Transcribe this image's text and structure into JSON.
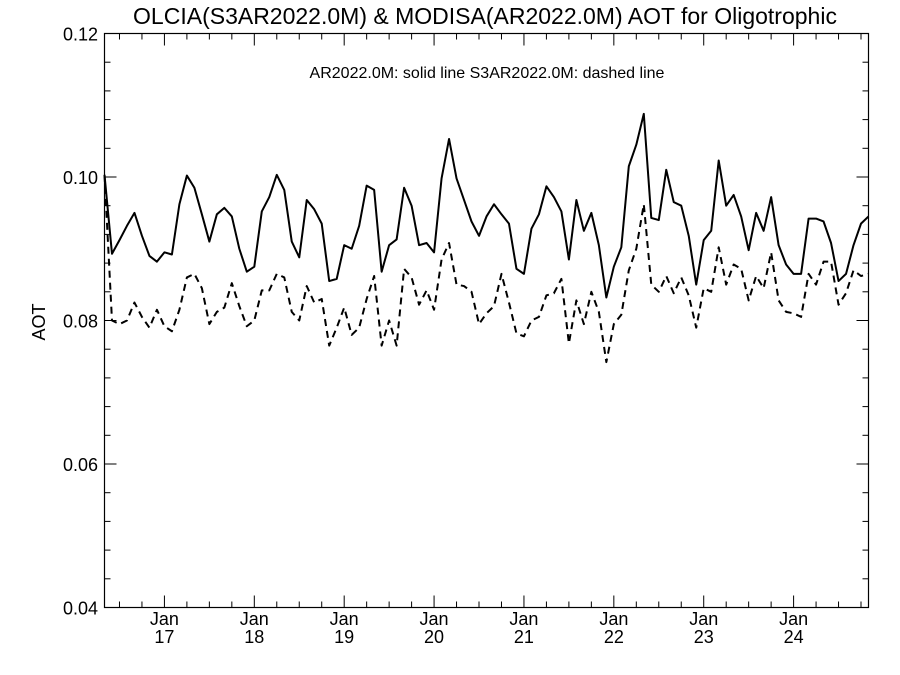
{
  "chart_data": {
    "type": "line",
    "title": "OLCIA(S3AR2022.0M) & MODISA(AR2022.0M)  AOT for Oligotrophic",
    "annotation": "AR2022.0M: solid line   S3AR2022.0M: dashed line",
    "ylabel": "AOT",
    "xlabel": "",
    "ylim": [
      0.04,
      0.12
    ],
    "xlim": [
      "2016-05",
      "2024-11"
    ],
    "y_ticks": [
      {
        "value": 0.04,
        "label": "0.04"
      },
      {
        "value": 0.06,
        "label": "0.06"
      },
      {
        "value": 0.08,
        "label": "0.08"
      },
      {
        "value": 0.1,
        "label": "0.10"
      },
      {
        "value": 0.12,
        "label": "0.12"
      }
    ],
    "x_ticks": [
      {
        "value": "2017-01",
        "label1": "Jan",
        "label2": "17"
      },
      {
        "value": "2018-01",
        "label1": "Jan",
        "label2": "18"
      },
      {
        "value": "2019-01",
        "label1": "Jan",
        "label2": "19"
      },
      {
        "value": "2020-01",
        "label1": "Jan",
        "label2": "20"
      },
      {
        "value": "2021-01",
        "label1": "Jan",
        "label2": "21"
      },
      {
        "value": "2022-01",
        "label1": "Jan",
        "label2": "22"
      },
      {
        "value": "2023-01",
        "label1": "Jan",
        "label2": "23"
      },
      {
        "value": "2024-01",
        "label1": "Jan",
        "label2": "24"
      }
    ],
    "minor_tick_months": [
      "04",
      "07",
      "10"
    ],
    "grid": false,
    "series": [
      {
        "name": "AR2022.0M",
        "style": "solid",
        "color": "#000000",
        "points": [
          [
            "2016-05",
            0.1003
          ],
          [
            "2016-06",
            0.0893
          ],
          [
            "2016-07",
            0.0912
          ],
          [
            "2016-08",
            0.0932
          ],
          [
            "2016-09",
            0.095
          ],
          [
            "2016-10",
            0.0918
          ],
          [
            "2016-11",
            0.089
          ],
          [
            "2016-12",
            0.0882
          ],
          [
            "2017-01",
            0.0895
          ],
          [
            "2017-02",
            0.0892
          ],
          [
            "2017-03",
            0.0962
          ],
          [
            "2017-04",
            0.1002
          ],
          [
            "2017-05",
            0.0985
          ],
          [
            "2017-06",
            0.0948
          ],
          [
            "2017-07",
            0.091
          ],
          [
            "2017-08",
            0.0948
          ],
          [
            "2017-09",
            0.0957
          ],
          [
            "2017-10",
            0.0945
          ],
          [
            "2017-11",
            0.09
          ],
          [
            "2017-12",
            0.0868
          ],
          [
            "2018-01",
            0.0875
          ],
          [
            "2018-02",
            0.0952
          ],
          [
            "2018-03",
            0.0972
          ],
          [
            "2018-04",
            0.1003
          ],
          [
            "2018-05",
            0.0982
          ],
          [
            "2018-06",
            0.091
          ],
          [
            "2018-07",
            0.0888
          ],
          [
            "2018-08",
            0.0968
          ],
          [
            "2018-09",
            0.0955
          ],
          [
            "2018-10",
            0.0935
          ],
          [
            "2018-11",
            0.0855
          ],
          [
            "2018-12",
            0.0858
          ],
          [
            "2019-01",
            0.0905
          ],
          [
            "2019-02",
            0.09
          ],
          [
            "2019-03",
            0.0932
          ],
          [
            "2019-04",
            0.0988
          ],
          [
            "2019-05",
            0.0982
          ],
          [
            "2019-06",
            0.0868
          ],
          [
            "2019-07",
            0.0905
          ],
          [
            "2019-08",
            0.0913
          ],
          [
            "2019-09",
            0.0985
          ],
          [
            "2019-10",
            0.096
          ],
          [
            "2019-11",
            0.0905
          ],
          [
            "2019-12",
            0.0908
          ],
          [
            "2020-01",
            0.0895
          ],
          [
            "2020-02",
            0.0998
          ],
          [
            "2020-03",
            0.1053
          ],
          [
            "2020-04",
            0.0998
          ],
          [
            "2020-05",
            0.0968
          ],
          [
            "2020-06",
            0.0938
          ],
          [
            "2020-07",
            0.0918
          ],
          [
            "2020-08",
            0.0945
          ],
          [
            "2020-09",
            0.0962
          ],
          [
            "2020-10",
            0.0948
          ],
          [
            "2020-11",
            0.0935
          ],
          [
            "2020-12",
            0.0872
          ],
          [
            "2021-01",
            0.0865
          ],
          [
            "2021-02",
            0.0928
          ],
          [
            "2021-03",
            0.0948
          ],
          [
            "2021-04",
            0.0987
          ],
          [
            "2021-05",
            0.0972
          ],
          [
            "2021-06",
            0.0952
          ],
          [
            "2021-07",
            0.0885
          ],
          [
            "2021-08",
            0.0968
          ],
          [
            "2021-09",
            0.0925
          ],
          [
            "2021-10",
            0.095
          ],
          [
            "2021-11",
            0.0905
          ],
          [
            "2021-12",
            0.0832
          ],
          [
            "2022-01",
            0.0875
          ],
          [
            "2022-02",
            0.0902
          ],
          [
            "2022-03",
            0.1015
          ],
          [
            "2022-04",
            0.1045
          ],
          [
            "2022-05",
            0.1088
          ],
          [
            "2022-06",
            0.0943
          ],
          [
            "2022-07",
            0.094
          ],
          [
            "2022-08",
            0.101
          ],
          [
            "2022-09",
            0.0965
          ],
          [
            "2022-10",
            0.096
          ],
          [
            "2022-11",
            0.0918
          ],
          [
            "2022-12",
            0.085
          ],
          [
            "2023-01",
            0.0912
          ],
          [
            "2023-02",
            0.0925
          ],
          [
            "2023-03",
            0.1023
          ],
          [
            "2023-04",
            0.096
          ],
          [
            "2023-05",
            0.0975
          ],
          [
            "2023-06",
            0.0945
          ],
          [
            "2023-07",
            0.0898
          ],
          [
            "2023-08",
            0.095
          ],
          [
            "2023-09",
            0.0925
          ],
          [
            "2023-10",
            0.0972
          ],
          [
            "2023-11",
            0.0905
          ],
          [
            "2023-12",
            0.0878
          ],
          [
            "2024-01",
            0.0865
          ],
          [
            "2024-02",
            0.0865
          ],
          [
            "2024-03",
            0.0942
          ],
          [
            "2024-04",
            0.0942
          ],
          [
            "2024-05",
            0.0938
          ],
          [
            "2024-06",
            0.0908
          ],
          [
            "2024-07",
            0.0855
          ],
          [
            "2024-08",
            0.0865
          ],
          [
            "2024-09",
            0.0905
          ],
          [
            "2024-10",
            0.0935
          ],
          [
            "2024-11",
            0.0945
          ]
        ]
      },
      {
        "name": "S3AR2022.0M",
        "style": "dashed",
        "color": "#000000",
        "points": [
          [
            "2016-05",
            0.1003
          ],
          [
            "2016-06",
            0.08
          ],
          [
            "2016-07",
            0.0795
          ],
          [
            "2016-08",
            0.08
          ],
          [
            "2016-09",
            0.0825
          ],
          [
            "2016-10",
            0.0805
          ],
          [
            "2016-11",
            0.079
          ],
          [
            "2016-12",
            0.0815
          ],
          [
            "2017-01",
            0.0792
          ],
          [
            "2017-02",
            0.0785
          ],
          [
            "2017-03",
            0.0815
          ],
          [
            "2017-04",
            0.086
          ],
          [
            "2017-05",
            0.0865
          ],
          [
            "2017-06",
            0.0845
          ],
          [
            "2017-07",
            0.0795
          ],
          [
            "2017-08",
            0.0812
          ],
          [
            "2017-09",
            0.0818
          ],
          [
            "2017-10",
            0.0852
          ],
          [
            "2017-11",
            0.082
          ],
          [
            "2017-12",
            0.0792
          ],
          [
            "2018-01",
            0.08
          ],
          [
            "2018-02",
            0.0842
          ],
          [
            "2018-03",
            0.0842
          ],
          [
            "2018-04",
            0.0865
          ],
          [
            "2018-05",
            0.086
          ],
          [
            "2018-06",
            0.0812
          ],
          [
            "2018-07",
            0.08
          ],
          [
            "2018-08",
            0.0848
          ],
          [
            "2018-09",
            0.0825
          ],
          [
            "2018-10",
            0.083
          ],
          [
            "2018-11",
            0.0765
          ],
          [
            "2018-12",
            0.079
          ],
          [
            "2019-01",
            0.0818
          ],
          [
            "2019-02",
            0.078
          ],
          [
            "2019-03",
            0.079
          ],
          [
            "2019-04",
            0.083
          ],
          [
            "2019-05",
            0.0862
          ],
          [
            "2019-06",
            0.0765
          ],
          [
            "2019-07",
            0.08
          ],
          [
            "2019-08",
            0.0765
          ],
          [
            "2019-09",
            0.0872
          ],
          [
            "2019-10",
            0.086
          ],
          [
            "2019-11",
            0.0822
          ],
          [
            "2019-12",
            0.0842
          ],
          [
            "2020-01",
            0.0815
          ],
          [
            "2020-02",
            0.0885
          ],
          [
            "2020-03",
            0.0908
          ],
          [
            "2020-04",
            0.085
          ],
          [
            "2020-05",
            0.0848
          ],
          [
            "2020-06",
            0.084
          ],
          [
            "2020-07",
            0.0795
          ],
          [
            "2020-08",
            0.081
          ],
          [
            "2020-09",
            0.082
          ],
          [
            "2020-10",
            0.0865
          ],
          [
            "2020-11",
            0.0825
          ],
          [
            "2020-12",
            0.0782
          ],
          [
            "2021-01",
            0.0778
          ],
          [
            "2021-02",
            0.08
          ],
          [
            "2021-03",
            0.0805
          ],
          [
            "2021-04",
            0.0835
          ],
          [
            "2021-05",
            0.0838
          ],
          [
            "2021-06",
            0.0858
          ],
          [
            "2021-07",
            0.0768
          ],
          [
            "2021-08",
            0.0828
          ],
          [
            "2021-09",
            0.0795
          ],
          [
            "2021-10",
            0.084
          ],
          [
            "2021-11",
            0.0812
          ],
          [
            "2021-12",
            0.0742
          ],
          [
            "2022-01",
            0.0795
          ],
          [
            "2022-02",
            0.0808
          ],
          [
            "2022-03",
            0.087
          ],
          [
            "2022-04",
            0.09
          ],
          [
            "2022-05",
            0.0962
          ],
          [
            "2022-06",
            0.085
          ],
          [
            "2022-07",
            0.084
          ],
          [
            "2022-08",
            0.0862
          ],
          [
            "2022-09",
            0.0838
          ],
          [
            "2022-10",
            0.086
          ],
          [
            "2022-11",
            0.0835
          ],
          [
            "2022-12",
            0.079
          ],
          [
            "2023-01",
            0.0845
          ],
          [
            "2023-02",
            0.084
          ],
          [
            "2023-03",
            0.0902
          ],
          [
            "2023-04",
            0.085
          ],
          [
            "2023-05",
            0.0878
          ],
          [
            "2023-06",
            0.0872
          ],
          [
            "2023-07",
            0.0828
          ],
          [
            "2023-08",
            0.0862
          ],
          [
            "2023-09",
            0.0845
          ],
          [
            "2023-10",
            0.0895
          ],
          [
            "2023-11",
            0.0828
          ],
          [
            "2023-12",
            0.0812
          ],
          [
            "2024-01",
            0.081
          ],
          [
            "2024-02",
            0.0805
          ],
          [
            "2024-03",
            0.0865
          ],
          [
            "2024-04",
            0.085
          ],
          [
            "2024-05",
            0.0882
          ],
          [
            "2024-06",
            0.0882
          ],
          [
            "2024-07",
            0.0822
          ],
          [
            "2024-08",
            0.0838
          ],
          [
            "2024-09",
            0.087
          ],
          [
            "2024-10",
            0.0862
          ],
          [
            "2024-11",
            0.0865
          ]
        ]
      }
    ]
  }
}
